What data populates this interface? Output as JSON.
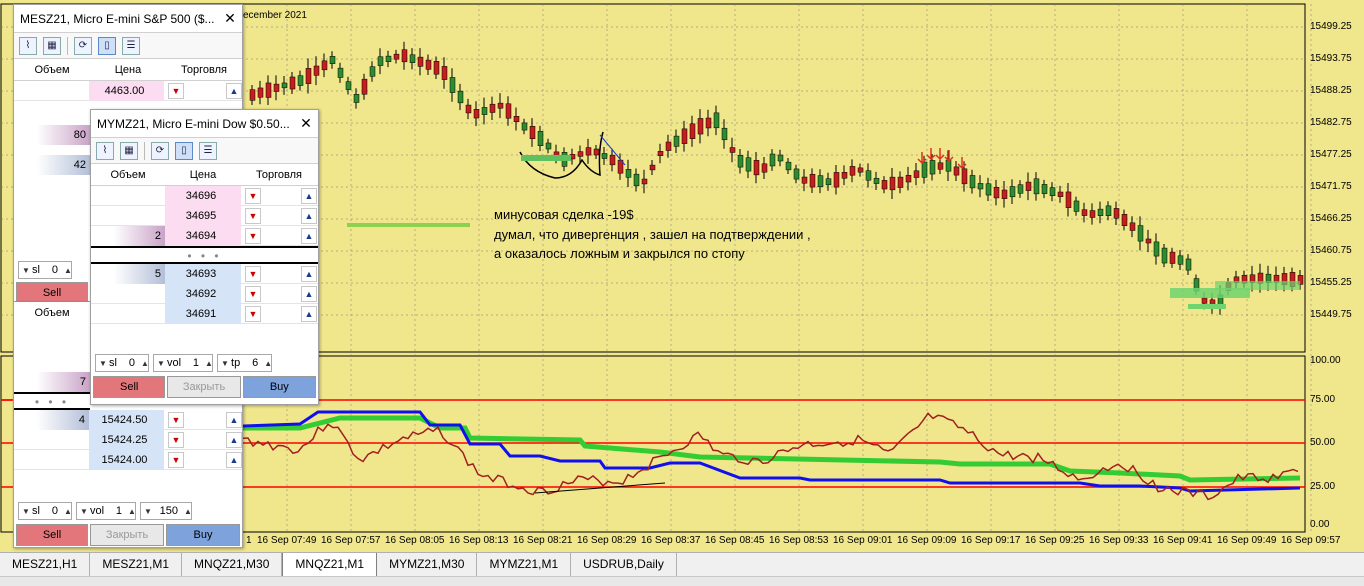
{
  "chart": {
    "date_header": "ecember 2021",
    "price_levels": [
      "15499.25",
      "15493.75",
      "15488.25",
      "15482.75",
      "15477.25",
      "15471.75",
      "15466.25",
      "15460.75",
      "15455.25",
      "15449.75"
    ],
    "osc_levels": [
      "100.00",
      "75.00",
      "50.00",
      "25.00",
      "0.00"
    ],
    "time_labels": [
      "1",
      "16 Sep 07:49",
      "16 Sep 07:57",
      "16 Sep 08:05",
      "16 Sep 08:13",
      "16 Sep 08:21",
      "16 Sep 08:29",
      "16 Sep 08:37",
      "16 Sep 08:45",
      "16 Sep 08:53",
      "16 Sep 09:01",
      "16 Sep 09:09",
      "16 Sep 09:17",
      "16 Sep 09:25",
      "16 Sep 09:33",
      "16 Sep 09:41",
      "16 Sep 09:49",
      "16 Sep 09:57"
    ],
    "annotation_lines": [
      "минусовая сделка -19$",
      "думал, что дивергенция , зашел на подтверждении ,",
      "а оказалось ложным и закрылся по стопу"
    ],
    "colors": {
      "background": "#f0e68c",
      "bull": "#2e8b2e",
      "bear": "#c41e1e",
      "ma_green": "#33cc33",
      "ma_blue": "#1010ee",
      "osc_red": "#a02020",
      "level": "#ff0000"
    }
  },
  "tabs": [
    {
      "label": "MESZ21,H1",
      "active": false
    },
    {
      "label": "MESZ21,M1",
      "active": false
    },
    {
      "label": "MNQZ21,M30",
      "active": false
    },
    {
      "label": "MNQZ21,M1",
      "active": true
    },
    {
      "label": "MYMZ21,M30",
      "active": false
    },
    {
      "label": "MYMZ21,M1",
      "active": false
    },
    {
      "label": "USDRUB,Daily",
      "active": false
    }
  ],
  "panel_back": {
    "title": "MESZ21, Micro E-mini S&P 500 ($...",
    "col_volume": "Объем",
    "col_price": "Цена",
    "col_trade": "Торговля",
    "price_top": "4463.00",
    "vol_80": "80",
    "vol_42": "42",
    "sl_label": "sl",
    "sl_value": "0",
    "sell_label": "Sell",
    "lower": {
      "col_volume": "Объем",
      "vol_7": "7",
      "vol_4": "4",
      "prices": [
        "15424.50",
        "15424.25",
        "15424.00"
      ],
      "sl_label": "sl",
      "sl_value": "0",
      "vol_label": "vol",
      "vol_value": "1",
      "tp_value": "150",
      "sell_label": "Sell",
      "close_label": "Закрыть",
      "buy_label": "Buy"
    }
  },
  "panel_front": {
    "title": "MYMZ21, Micro E-mini Dow $0.50...",
    "col_volume": "Объем",
    "col_price": "Цена",
    "col_trade": "Торговля",
    "sell_rows": [
      {
        "volume": "",
        "price": "34696"
      },
      {
        "volume": "",
        "price": "34695"
      },
      {
        "volume": "2",
        "price": "34694"
      }
    ],
    "buy_rows": [
      {
        "volume": "5",
        "price": "34693"
      },
      {
        "volume": "",
        "price": "34692"
      },
      {
        "volume": "",
        "price": "34691"
      }
    ],
    "dots": "• • •",
    "sl_label": "sl",
    "sl_value": "0",
    "vol_label": "vol",
    "vol_value": "1",
    "tp_label": "tp",
    "tp_value": "6",
    "sell_label": "Sell",
    "close_label": "Закрыть",
    "buy_label": "Buy"
  }
}
